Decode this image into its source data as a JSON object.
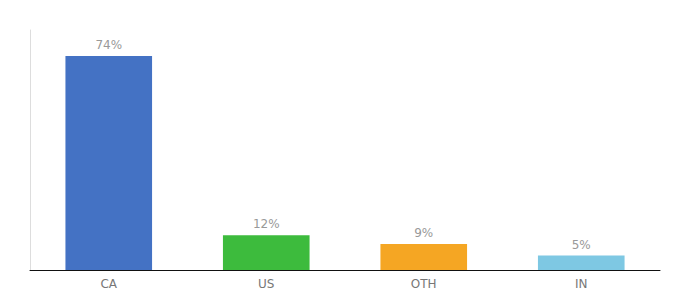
{
  "chart_data": {
    "type": "bar",
    "categories": [
      "CA",
      "US",
      "OTH",
      "IN"
    ],
    "values": [
      74,
      12,
      9,
      5
    ],
    "value_labels": [
      "74%",
      "12%",
      "9%",
      "5%"
    ],
    "colors": [
      "#4472c4",
      "#3dbb3d",
      "#f5a623",
      "#7ec8e3"
    ],
    "ylim": [
      0,
      83
    ],
    "data_labels": true,
    "tick_labels": "x",
    "grid": false
  }
}
